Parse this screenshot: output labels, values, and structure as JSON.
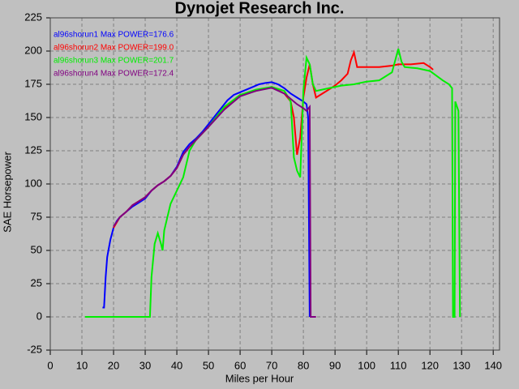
{
  "chart_data": {
    "type": "line",
    "title": "Dynojet  Research  Inc.",
    "xlabel": "Miles per Hour",
    "ylabel": "SAE Horsepower",
    "xlim": [
      0,
      142
    ],
    "ylim": [
      -25,
      225
    ],
    "xticks": [
      0,
      10,
      20,
      30,
      40,
      50,
      60,
      70,
      80,
      90,
      100,
      110,
      120,
      130,
      140
    ],
    "yticks": [
      -25,
      0,
      25,
      50,
      75,
      100,
      125,
      150,
      175,
      200,
      225
    ],
    "grid": true,
    "series": [
      {
        "name": "al96shorun1  Max POWER=176.6",
        "color": "#0000ff",
        "x": [
          16.5,
          17,
          17.5,
          18,
          19,
          20,
          21,
          22,
          24,
          26,
          28,
          30,
          32,
          34,
          36,
          38,
          40,
          42,
          44,
          46,
          48,
          50,
          52,
          54,
          56,
          58,
          60,
          62,
          64,
          66,
          68,
          70,
          72,
          74,
          76,
          78,
          80,
          81,
          81.5,
          82
        ],
        "values": [
          7,
          7,
          30,
          45,
          58,
          67,
          72,
          75,
          79,
          83,
          86,
          89,
          95,
          99,
          102,
          106,
          113,
          124,
          130,
          134,
          139,
          145,
          151,
          157,
          163,
          167,
          169,
          171,
          173,
          175,
          176,
          176.6,
          175,
          172,
          168,
          165,
          162,
          160,
          150,
          0
        ]
      },
      {
        "name": "al96shorun2  Max POWER=199.0",
        "color": "#ff0000",
        "x": [
          20,
          22,
          24,
          26,
          28,
          30,
          32,
          34,
          36,
          38,
          40,
          42,
          44,
          46,
          50,
          55,
          60,
          65,
          70,
          74,
          76,
          77,
          78,
          79,
          80,
          81,
          82,
          83,
          84,
          86,
          88,
          90,
          92,
          94,
          95,
          96,
          97,
          100,
          104,
          108,
          110,
          112,
          114,
          118,
          120,
          121
        ],
        "values": [
          67,
          75,
          79,
          84,
          87,
          90,
          95,
          99,
          102,
          106,
          112,
          122,
          128,
          133,
          143,
          157,
          167,
          170,
          173,
          168,
          162,
          150,
          122,
          135,
          165,
          180,
          190,
          175,
          165,
          168,
          171,
          174,
          178,
          183,
          193,
          199,
          188,
          188,
          188,
          189,
          190,
          190,
          190,
          191,
          188,
          186
        ]
      },
      {
        "name": "al96shorun3  Max POWER=201.7",
        "color": "#00ee00",
        "x": [
          11,
          31.5,
          32,
          33,
          34,
          35,
          35.5,
          36,
          38,
          40,
          42,
          44,
          46,
          50,
          55,
          60,
          65,
          70,
          74,
          76,
          77,
          78,
          79,
          80,
          81,
          82,
          83,
          84,
          88,
          92,
          96,
          100,
          104,
          108,
          110,
          111,
          112,
          116,
          120,
          124,
          126,
          127,
          127.3,
          127.8,
          128,
          129,
          129.5
        ],
        "values": [
          0,
          0,
          30,
          55,
          63,
          55,
          50,
          65,
          85,
          95,
          105,
          125,
          133,
          143,
          158,
          167,
          171,
          173,
          170,
          162,
          120,
          110,
          105,
          170,
          195,
          190,
          175,
          170,
          172,
          174,
          175,
          177,
          178,
          184,
          201.7,
          192,
          188,
          187,
          185,
          178,
          175,
          172,
          0,
          0,
          162,
          155,
          0
        ]
      },
      {
        "name": "al96shorun4  Max POWER=172.4",
        "color": "#800080",
        "x": [
          20,
          22,
          24,
          26,
          28,
          30,
          32,
          34,
          36,
          38,
          40,
          42,
          44,
          46,
          50,
          55,
          60,
          65,
          70,
          74,
          78,
          80,
          81,
          82,
          82.3,
          84
        ],
        "values": [
          68,
          75,
          79,
          84,
          87,
          90,
          95,
          99,
          102,
          106,
          112,
          122,
          128,
          133,
          143,
          156,
          166,
          170,
          172.4,
          168,
          160,
          157,
          155,
          158,
          0,
          0
        ]
      }
    ]
  }
}
